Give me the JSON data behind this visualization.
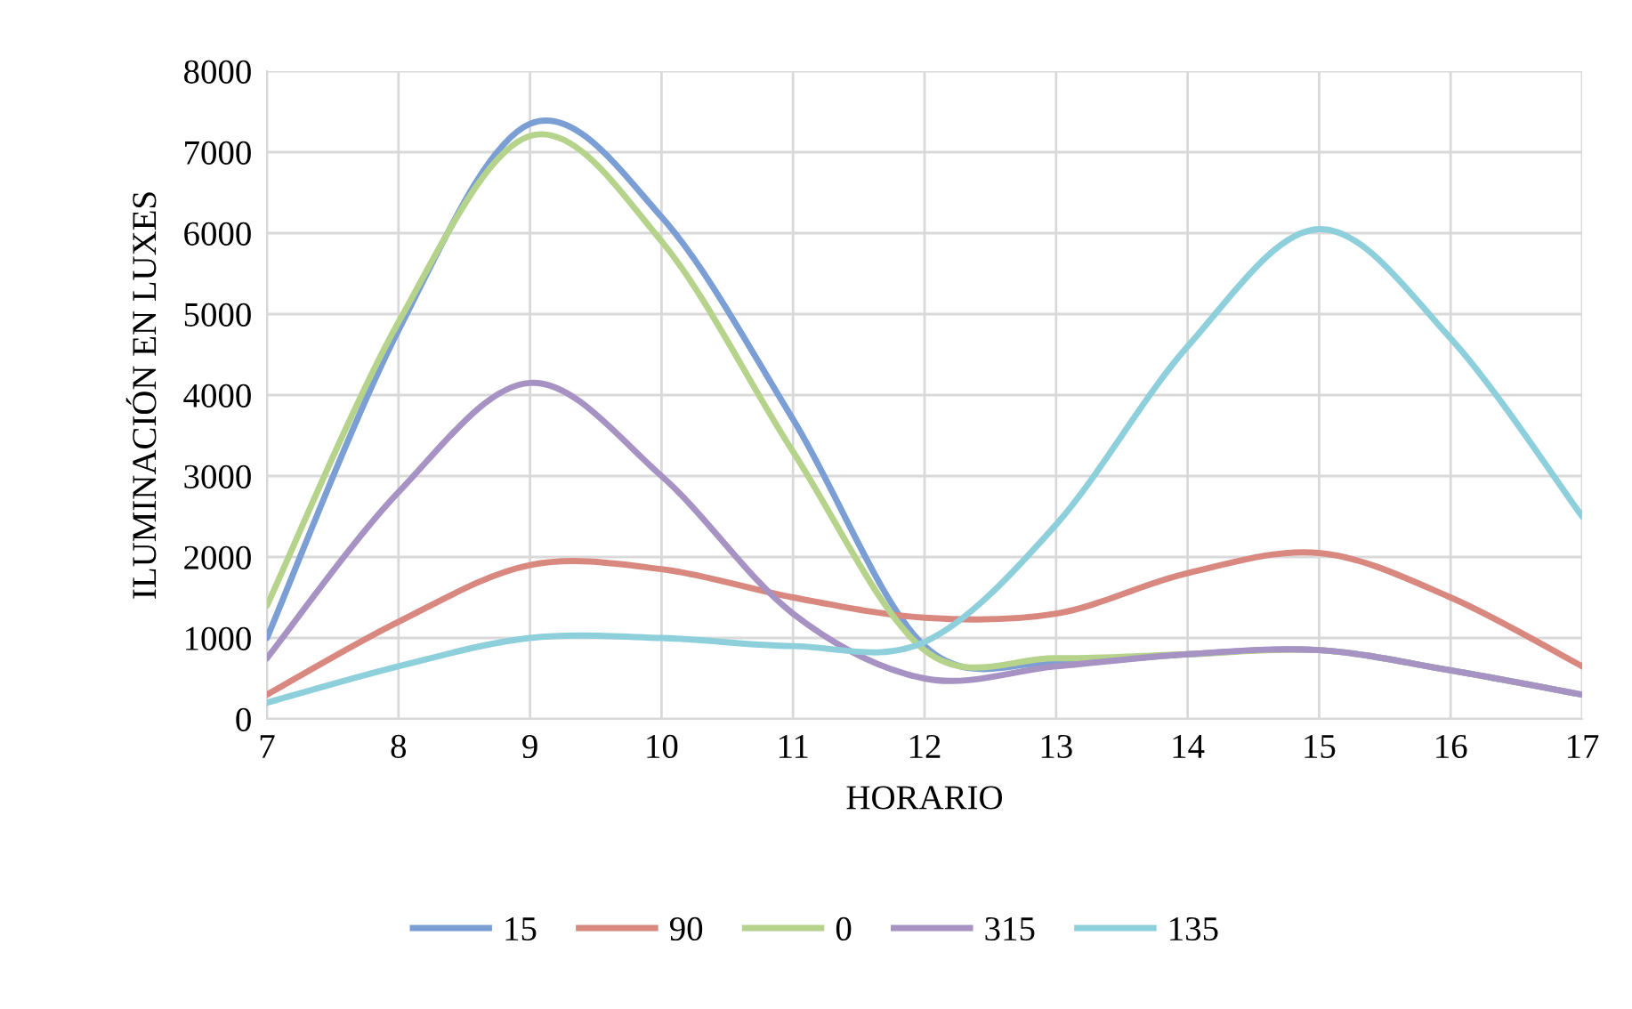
{
  "chart_data": {
    "type": "line",
    "xlabel": "HORARIO",
    "ylabel": "ILUMINACIÓN EN LUXES",
    "x": [
      7,
      8,
      9,
      10,
      11,
      12,
      13,
      14,
      15,
      16,
      17
    ],
    "xlim": [
      7,
      17
    ],
    "xticks": [
      7,
      8,
      9,
      10,
      11,
      12,
      13,
      14,
      15,
      16,
      17
    ],
    "ylim": [
      0,
      8000
    ],
    "yticks": [
      0,
      1000,
      2000,
      3000,
      4000,
      5000,
      6000,
      7000,
      8000
    ],
    "grid": true,
    "legend": "bottom",
    "marker": "none",
    "line_style": "solid",
    "series": [
      {
        "name": "15",
        "color": "#7b9fd4",
        "values": [
          1000,
          4800,
          7350,
          6200,
          3700,
          900,
          700,
          800,
          850,
          600,
          300
        ]
      },
      {
        "name": "90",
        "color": "#d98880",
        "values": [
          300,
          1200,
          1900,
          1850,
          1500,
          1250,
          1300,
          1800,
          2050,
          1500,
          650
        ]
      },
      {
        "name": "0",
        "color": "#b5d38a",
        "values": [
          1400,
          4900,
          7200,
          5900,
          3300,
          850,
          750,
          800,
          850,
          600,
          300
        ]
      },
      {
        "name": "315",
        "color": "#a792c4",
        "values": [
          750,
          2800,
          4150,
          3000,
          1300,
          500,
          650,
          800,
          850,
          600,
          300
        ]
      },
      {
        "name": "135",
        "color": "#8ecfdc",
        "values": [
          200,
          650,
          1000,
          1000,
          900,
          950,
          2400,
          4600,
          6050,
          4700,
          2500
        ]
      }
    ]
  }
}
